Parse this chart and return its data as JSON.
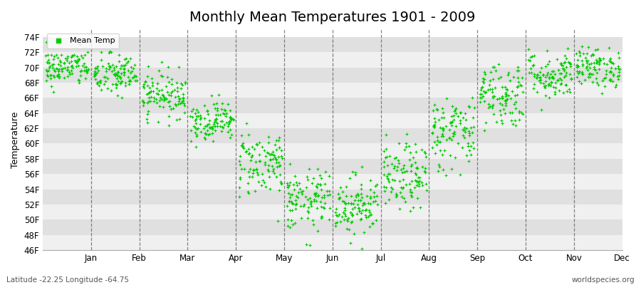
{
  "title": "Monthly Mean Temperatures 1901 - 2009",
  "ylabel": "Temperature",
  "subtitle_left": "Latitude -22.25 Longitude -64.75",
  "subtitle_right": "worldspecies.org",
  "ylim": [
    46,
    75
  ],
  "yticks": [
    46,
    48,
    50,
    52,
    54,
    56,
    58,
    60,
    62,
    64,
    66,
    68,
    70,
    72,
    74
  ],
  "ytick_labels": [
    "46F",
    "48F",
    "50F",
    "52F",
    "54F",
    "56F",
    "58F",
    "60F",
    "62F",
    "64F",
    "66F",
    "68F",
    "70F",
    "72F",
    "74F"
  ],
  "months": [
    "Jan",
    "Feb",
    "Mar",
    "Apr",
    "May",
    "Jun",
    "Jul",
    "Aug",
    "Sep",
    "Oct",
    "Nov",
    "Dec"
  ],
  "dot_color": "#00cc00",
  "bg_color_light": "#f0f0f0",
  "bg_color_dark": "#e0e0e0",
  "legend_label": "Mean Temp",
  "monthly_mean_F": [
    70.0,
    69.0,
    66.5,
    63.0,
    57.5,
    52.5,
    52.0,
    55.5,
    61.5,
    66.5,
    69.0,
    70.0
  ],
  "monthly_std_F": [
    1.2,
    1.4,
    1.5,
    1.3,
    2.2,
    2.0,
    2.0,
    2.2,
    2.5,
    2.2,
    1.6,
    1.3
  ],
  "n_years": 109,
  "random_seed": 42,
  "title_fontsize": 14,
  "axis_label_fontsize": 9,
  "tick_fontsize": 8.5
}
